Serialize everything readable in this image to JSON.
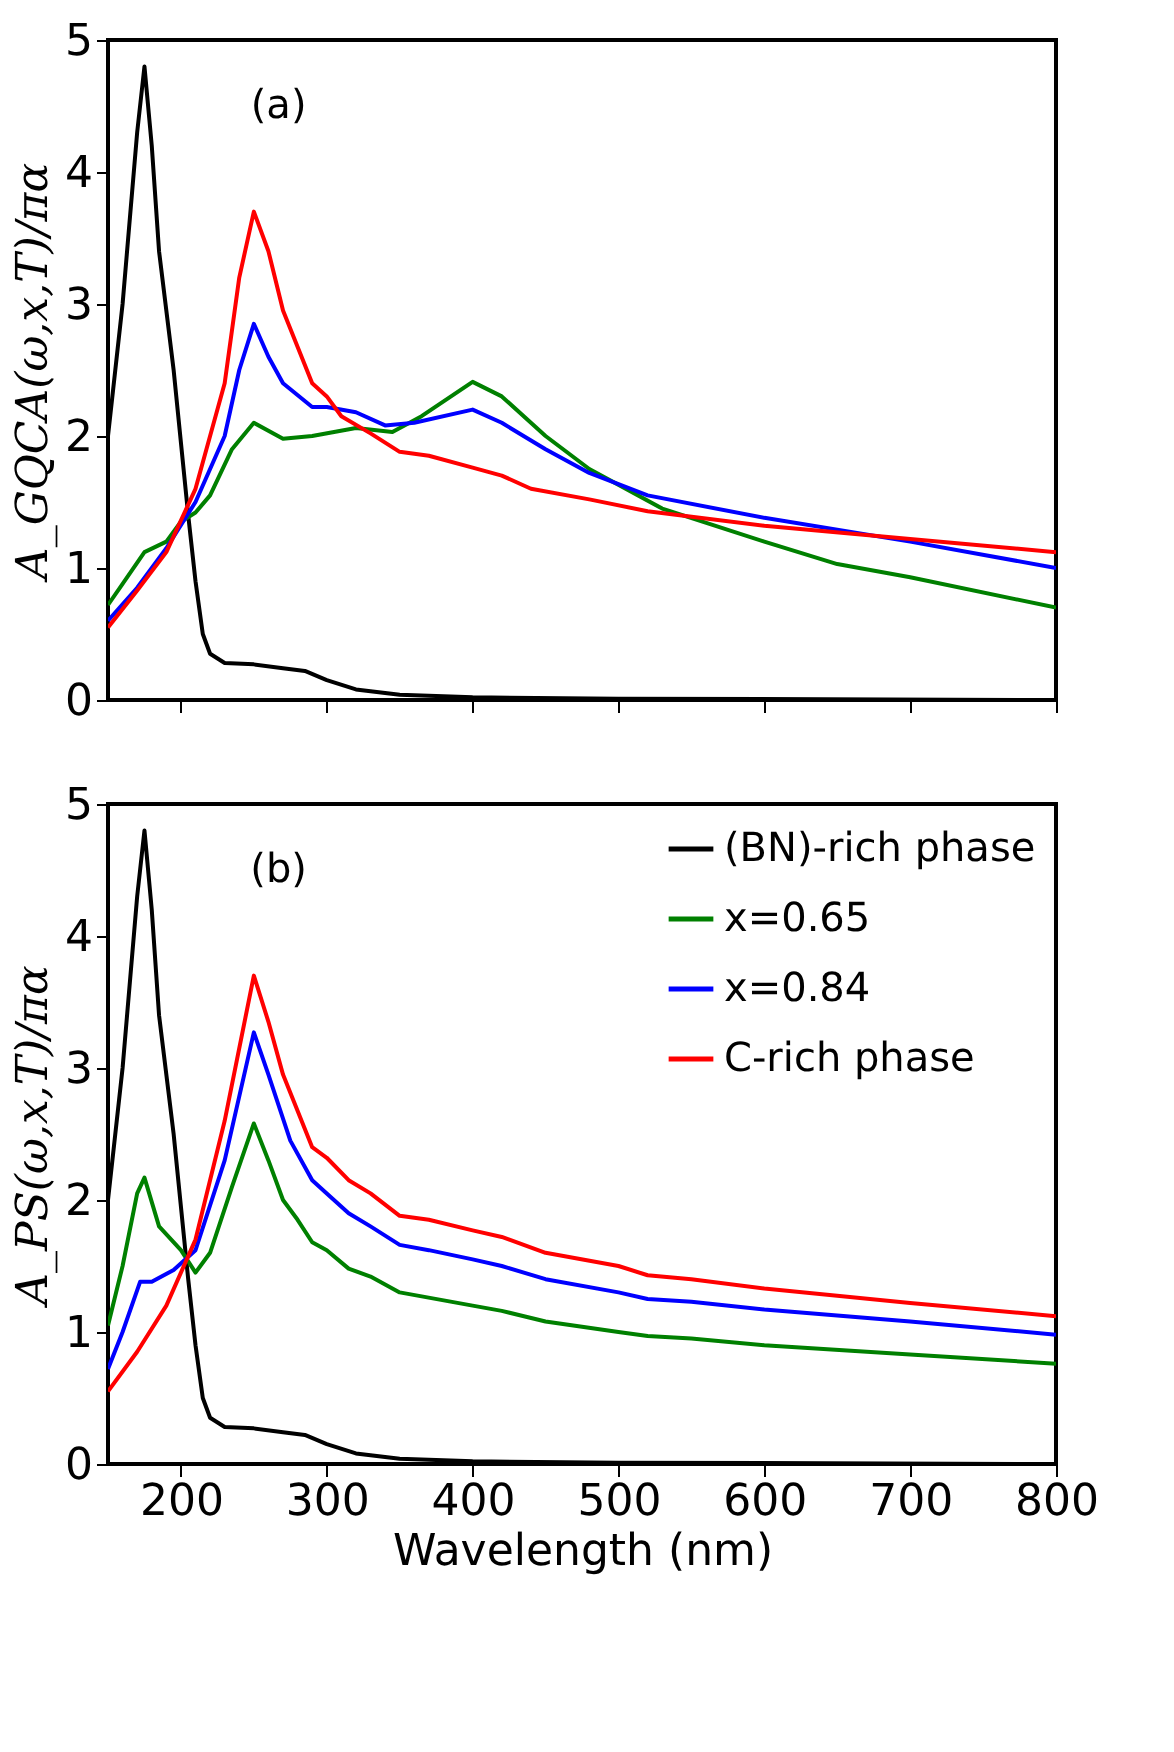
{
  "chart_data": [
    {
      "type": "line",
      "ylabel": "A_GQCA(ω,x,T)/πα",
      "annotations": [
        "(a)"
      ],
      "xlim": [
        150,
        800
      ],
      "ylim": [
        0,
        5
      ],
      "xticks": [
        200,
        300,
        400,
        500,
        600,
        700,
        800
      ],
      "yticks": [
        0,
        1,
        2,
        3,
        4,
        5
      ],
      "tick_labels": "y",
      "grid": false,
      "legend": false,
      "line_style": "solid",
      "series": [
        {
          "color": "#000000",
          "x": [
            150,
            160,
            170,
            175,
            180,
            185,
            195,
            205,
            210,
            215,
            220,
            230,
            250,
            270,
            285,
            300,
            320,
            350,
            400,
            500,
            800
          ],
          "values": [
            2.0,
            3.0,
            4.3,
            4.8,
            4.2,
            3.4,
            2.5,
            1.4,
            0.9,
            0.5,
            0.35,
            0.28,
            0.27,
            0.24,
            0.22,
            0.15,
            0.08,
            0.04,
            0.02,
            0.01,
            0.0
          ]
        },
        {
          "color": "#008000",
          "x": [
            150,
            160,
            175,
            190,
            200,
            210,
            220,
            235,
            250,
            270,
            290,
            320,
            345,
            365,
            400,
            420,
            450,
            480,
            530,
            600,
            650,
            700,
            800
          ],
          "values": [
            0.72,
            0.88,
            1.12,
            1.2,
            1.35,
            1.42,
            1.55,
            1.9,
            2.1,
            1.98,
            2.0,
            2.06,
            2.03,
            2.15,
            2.41,
            2.3,
            2.0,
            1.75,
            1.45,
            1.2,
            1.03,
            0.93,
            0.7
          ]
        },
        {
          "color": "#0000ff",
          "x": [
            150,
            170,
            190,
            210,
            230,
            240,
            250,
            260,
            270,
            290,
            300,
            320,
            340,
            360,
            400,
            420,
            450,
            480,
            520,
            600,
            700,
            800
          ],
          "values": [
            0.6,
            0.85,
            1.15,
            1.5,
            2.0,
            2.5,
            2.85,
            2.6,
            2.4,
            2.22,
            2.22,
            2.18,
            2.08,
            2.1,
            2.2,
            2.1,
            1.9,
            1.72,
            1.55,
            1.38,
            1.2,
            1.0
          ]
        },
        {
          "color": "#ff0000",
          "x": [
            150,
            170,
            190,
            210,
            230,
            240,
            250,
            260,
            270,
            290,
            300,
            310,
            330,
            350,
            370,
            400,
            420,
            440,
            480,
            520,
            600,
            700,
            800
          ],
          "values": [
            0.55,
            0.83,
            1.12,
            1.6,
            2.4,
            3.2,
            3.7,
            3.4,
            2.95,
            2.4,
            2.3,
            2.15,
            2.02,
            1.88,
            1.85,
            1.76,
            1.7,
            1.6,
            1.52,
            1.43,
            1.32,
            1.22,
            1.12
          ]
        }
      ]
    },
    {
      "type": "line",
      "xlabel": "Wavelength (nm)",
      "ylabel": "A_PS(ω,x,T)/πα",
      "annotations": [
        "(b)"
      ],
      "xlim": [
        150,
        800
      ],
      "ylim": [
        0,
        5
      ],
      "xticks": [
        200,
        300,
        400,
        500,
        600,
        700,
        800
      ],
      "yticks": [
        0,
        1,
        2,
        3,
        4,
        5
      ],
      "grid": false,
      "legend": "top right",
      "line_style": "solid",
      "series": [
        {
          "name": "(BN)-rich phase",
          "color": "#000000",
          "x": [
            150,
            160,
            170,
            175,
            180,
            185,
            195,
            205,
            210,
            215,
            220,
            230,
            250,
            270,
            285,
            300,
            320,
            350,
            400,
            500,
            800
          ],
          "values": [
            2.0,
            3.0,
            4.3,
            4.8,
            4.2,
            3.4,
            2.5,
            1.4,
            0.9,
            0.5,
            0.35,
            0.28,
            0.27,
            0.24,
            0.22,
            0.15,
            0.08,
            0.04,
            0.02,
            0.01,
            0.0
          ]
        },
        {
          "name": "x=0.65",
          "color": "#008000",
          "x": [
            150,
            160,
            170,
            175,
            185,
            200,
            210,
            220,
            235,
            250,
            260,
            270,
            280,
            290,
            300,
            315,
            330,
            350,
            400,
            420,
            450,
            500,
            520,
            550,
            600,
            700,
            800
          ],
          "values": [
            1.05,
            1.5,
            2.05,
            2.17,
            1.8,
            1.62,
            1.45,
            1.6,
            2.1,
            2.58,
            2.3,
            2.0,
            1.85,
            1.68,
            1.62,
            1.48,
            1.42,
            1.3,
            1.2,
            1.16,
            1.08,
            1.0,
            0.97,
            0.95,
            0.9,
            0.83,
            0.76
          ]
        },
        {
          "name": "x=0.84",
          "color": "#0000ff",
          "x": [
            150,
            160,
            172,
            180,
            195,
            210,
            230,
            250,
            260,
            275,
            290,
            300,
            315,
            330,
            350,
            370,
            400,
            420,
            450,
            500,
            520,
            550,
            600,
            700,
            800
          ],
          "values": [
            0.72,
            1.0,
            1.38,
            1.38,
            1.47,
            1.62,
            2.3,
            3.27,
            2.95,
            2.45,
            2.15,
            2.05,
            1.9,
            1.8,
            1.66,
            1.62,
            1.55,
            1.5,
            1.4,
            1.3,
            1.25,
            1.23,
            1.17,
            1.08,
            0.98
          ]
        },
        {
          "name": "C-rich phase",
          "color": "#ff0000",
          "x": [
            150,
            170,
            190,
            210,
            230,
            250,
            260,
            270,
            290,
            300,
            315,
            330,
            350,
            370,
            400,
            420,
            450,
            500,
            520,
            550,
            600,
            700,
            800
          ],
          "values": [
            0.55,
            0.85,
            1.2,
            1.7,
            2.6,
            3.7,
            3.35,
            2.95,
            2.4,
            2.32,
            2.15,
            2.05,
            1.88,
            1.85,
            1.77,
            1.72,
            1.6,
            1.5,
            1.43,
            1.4,
            1.33,
            1.22,
            1.12
          ]
        }
      ]
    }
  ]
}
